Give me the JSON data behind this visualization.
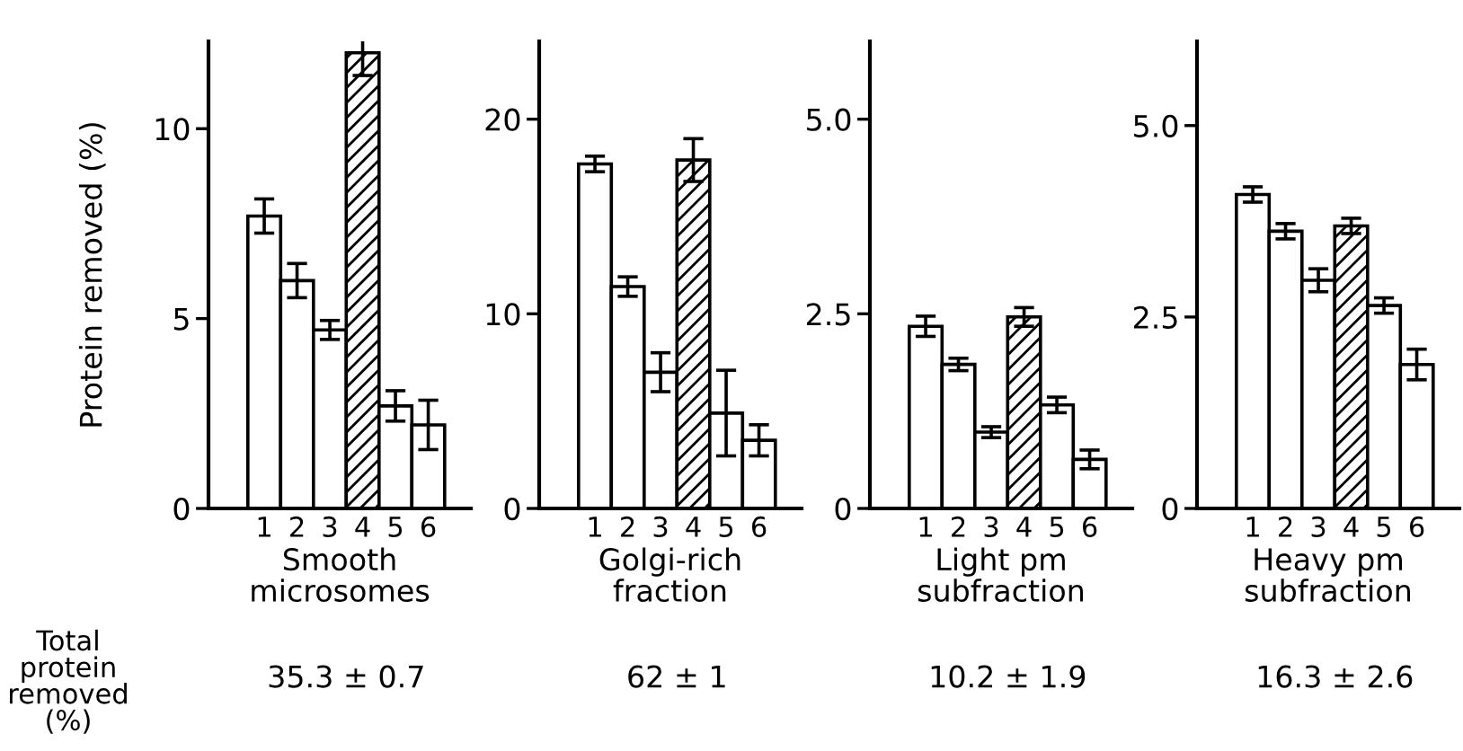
{
  "chart_data": [
    {
      "type": "bar",
      "ylabel": "Protein removed (%)",
      "xlabel": "Smooth\nmicrosomes",
      "categories": [
        "1",
        "2",
        "3",
        "4",
        "5",
        "6"
      ],
      "values": [
        7.7,
        6.0,
        4.7,
        12.0,
        2.7,
        2.2
      ],
      "errors": [
        0.45,
        0.45,
        0.25,
        0.6,
        0.4,
        0.65
      ],
      "colors": [
        "#ffffff",
        "#ffffff",
        "#ffffff",
        "#000000",
        "#ffffff",
        "#ffffff"
      ],
      "ylim": [
        0,
        12.3
      ],
      "yticks": [
        0,
        5,
        10
      ],
      "grid": false,
      "annotations": [
        "Total\nprotein\nremoved\n(%)",
        "35.3 ± 0.7"
      ]
    },
    {
      "type": "bar",
      "xlabel": "Golgi-rich\nfraction",
      "categories": [
        "1",
        "2",
        "3",
        "4",
        "5",
        "6"
      ],
      "values": [
        17.7,
        11.4,
        7.0,
        17.9,
        4.9,
        3.5
      ],
      "errors": [
        0.4,
        0.5,
        1.0,
        1.1,
        2.2,
        0.8
      ],
      "colors": [
        "#ffffff",
        "#ffffff",
        "#ffffff",
        "#000000",
        "#ffffff",
        "#ffffff"
      ],
      "ylim": [
        0,
        24
      ],
      "yticks": [
        0,
        10,
        20
      ],
      "grid": false,
      "annotations": [
        "62 ± 1"
      ]
    },
    {
      "type": "bar",
      "xlabel": "Light pm\nsubfraction",
      "categories": [
        "1",
        "2",
        "3",
        "4",
        "5",
        "6"
      ],
      "values": [
        2.34,
        1.85,
        0.98,
        2.46,
        1.33,
        0.63
      ],
      "errors": [
        0.13,
        0.08,
        0.07,
        0.12,
        0.1,
        0.12
      ],
      "colors": [
        "#ffffff",
        "#ffffff",
        "#ffffff",
        "#000000",
        "#ffffff",
        "#ffffff"
      ],
      "ylim": [
        0,
        6
      ],
      "yticks": [
        0,
        2.5,
        {
          "value": 5,
          "label": "5.0"
        }
      ],
      "grid": false,
      "annotations": [
        "10.2 ± 1.9"
      ]
    },
    {
      "type": "bar",
      "xlabel": "Heavy pm\nsubfraction",
      "categories": [
        "1",
        "2",
        "3",
        "4",
        "5",
        "6"
      ],
      "values": [
        4.1,
        3.62,
        2.98,
        3.69,
        2.65,
        1.88
      ],
      "errors": [
        0.1,
        0.1,
        0.15,
        0.1,
        0.1,
        0.2
      ],
      "colors": [
        "#ffffff",
        "#ffffff",
        "#ffffff",
        "#000000",
        "#ffffff",
        "#ffffff"
      ],
      "ylim": [
        0,
        6.1
      ],
      "yticks": [
        0,
        2.5,
        {
          "value": 5,
          "label": "5.0"
        }
      ],
      "grid": false,
      "annotations": [
        "16.3 ± 2.6"
      ]
    }
  ]
}
